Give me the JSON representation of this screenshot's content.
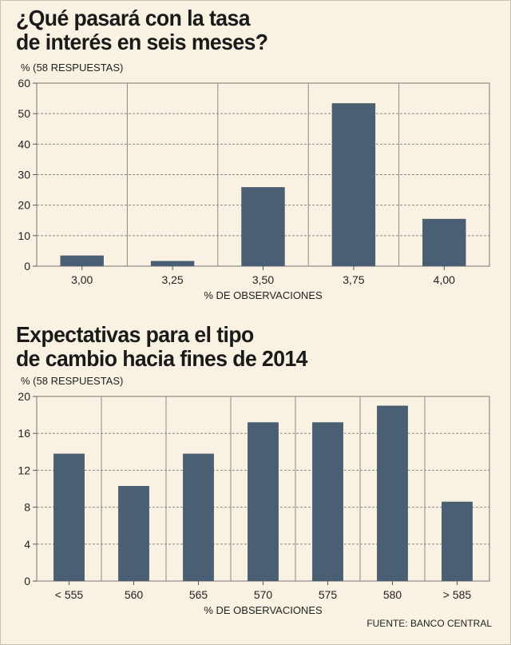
{
  "chart_data": [
    {
      "type": "bar",
      "title_lines": [
        "¿Qué pasará con la tasa",
        "de interés en seis meses?"
      ],
      "subtitle": "% (58 RESPUESTAS)",
      "xlabel": "% DE OBSERVACIONES",
      "categories": [
        "3,00",
        "3,25",
        "3,50",
        "3,75",
        "4,00"
      ],
      "values": [
        3.5,
        1.7,
        25.9,
        53.4,
        15.5
      ],
      "ylim": [
        0,
        60
      ],
      "yticks": [
        0,
        10,
        20,
        30,
        40,
        50,
        60
      ],
      "bar_color": "#4a5f73",
      "grid": "dashed horizontal"
    },
    {
      "type": "bar",
      "title_lines": [
        "Expectativas para el tipo",
        "de cambio hacia fines de 2014"
      ],
      "subtitle": "% (58 RESPUESTAS)",
      "xlabel": "% DE OBSERVACIONES",
      "categories": [
        "< 555",
        "560",
        "565",
        "570",
        "575",
        "580",
        "> 585"
      ],
      "values": [
        13.8,
        10.3,
        13.8,
        17.2,
        17.2,
        19.0,
        8.6
      ],
      "ylim": [
        0,
        20
      ],
      "yticks": [
        0,
        4,
        8,
        12,
        16,
        20
      ],
      "bar_color": "#4a5f73",
      "grid": "dashed horizontal"
    }
  ],
  "source": "FUENTE: BANCO CENTRAL"
}
